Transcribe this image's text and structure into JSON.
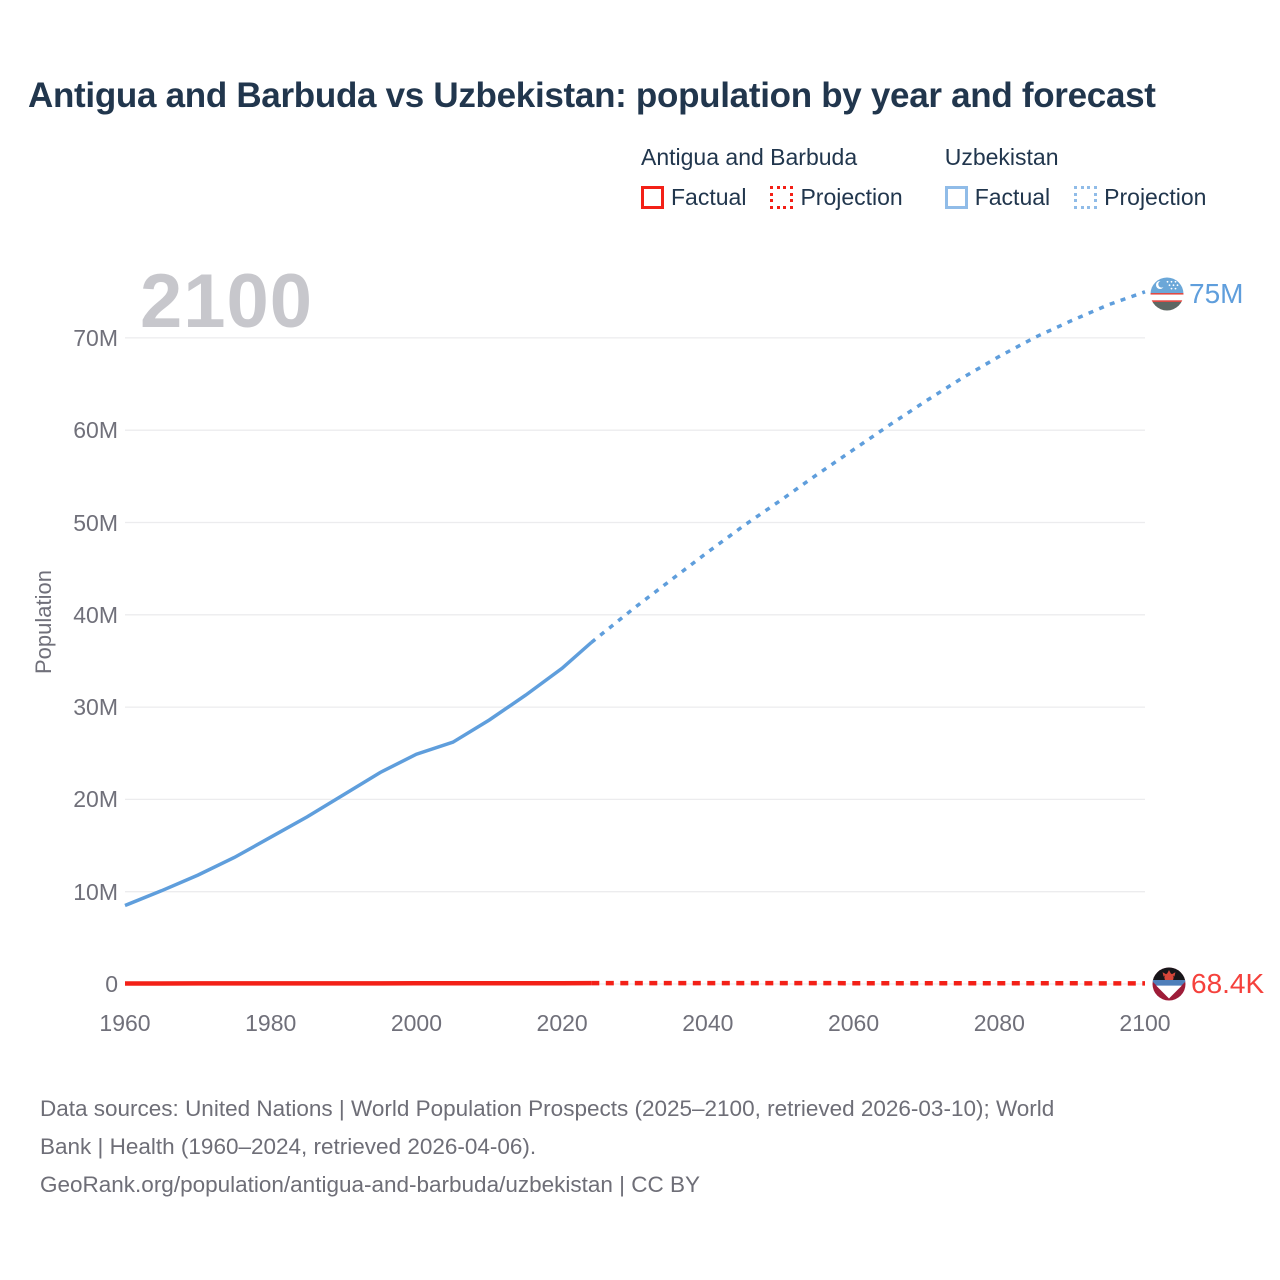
{
  "header": {
    "title": "Antigua and Barbuda vs Uzbekistan: population by year and forecast"
  },
  "watermark_year": "2100",
  "legend": {
    "groups": [
      {
        "name": "Antigua and Barbuda",
        "swatch_color": "#f32017",
        "items": [
          {
            "label": "Factual",
            "line_style": "solid"
          },
          {
            "label": "Projection",
            "line_style": "dashed"
          }
        ]
      },
      {
        "name": "Uzbekistan",
        "swatch_color": "#90bce8",
        "items": [
          {
            "label": "Factual",
            "line_style": "solid"
          },
          {
            "label": "Projection",
            "line_style": "dashed"
          }
        ]
      }
    ]
  },
  "y_axis": {
    "label": "Population"
  },
  "end_markers": {
    "uzbekistan": {
      "label": "75M",
      "icon": "uzbekistan-flag"
    },
    "antigua": {
      "label": "68.4K",
      "icon": "antigua-and-barbuda-flag"
    }
  },
  "footer": {
    "lines": [
      "Data sources: United Nations | World Population Prospects (2025–2100, retrieved 2026-03-10); World",
      "Bank | Health (1960–2024, retrieved 2026-04-06).",
      "GeoRank.org/population/antigua-and-barbuda/uzbekistan | CC BY"
    ]
  },
  "colors": {
    "title_navy": "#21364d",
    "axis_text": "#70707a",
    "gridline": "#ececee",
    "watermark_gray": "#c7c7cc",
    "footer_gray": "#6e6e77",
    "antigua_red": "#f32017",
    "antigua_label_red": "#f5413c",
    "uzbekistan_blue": "#5f9edc",
    "uzbekistan_swatch_blue": "#90bce8"
  },
  "chart_data": {
    "type": "line",
    "title": "Antigua and Barbuda vs Uzbekistan: population by year and forecast",
    "xlabel": "",
    "ylabel": "Population",
    "x_range": [
      1960,
      2100
    ],
    "ylim_millions": [
      0,
      78
    ],
    "x_ticks": [
      1960,
      1980,
      2000,
      2020,
      2040,
      2060,
      2080,
      2100
    ],
    "y_ticks": [
      {
        "value_millions": 0,
        "label": "0"
      },
      {
        "value_millions": 10,
        "label": "10M"
      },
      {
        "value_millions": 20,
        "label": "20M"
      },
      {
        "value_millions": 30,
        "label": "30M"
      },
      {
        "value_millions": 40,
        "label": "40M"
      },
      {
        "value_millions": 50,
        "label": "50M"
      },
      {
        "value_millions": 60,
        "label": "60M"
      },
      {
        "value_millions": 70,
        "label": "70M"
      }
    ],
    "grid": "horizontal",
    "legend_position": "top-right",
    "series": [
      {
        "name": "Uzbekistan — Factual",
        "country": "Uzbekistan",
        "segment": "factual",
        "style": "solid",
        "color": "#5f9edc",
        "stroke_width": 3.5,
        "x": [
          1960,
          1965,
          1970,
          1975,
          1980,
          1985,
          1990,
          1995,
          2000,
          2005,
          2010,
          2015,
          2020,
          2024
        ],
        "values_millions": [
          8.5,
          10.1,
          11.8,
          13.7,
          15.9,
          18.1,
          20.5,
          22.9,
          24.9,
          26.2,
          28.6,
          31.3,
          34.2,
          37.0
        ]
      },
      {
        "name": "Uzbekistan — Projection",
        "country": "Uzbekistan",
        "segment": "projection",
        "style": "dashed",
        "color": "#5f9edc",
        "stroke_width": 3.5,
        "dash": "5 6.5",
        "x": [
          2024,
          2030,
          2035,
          2040,
          2045,
          2050,
          2055,
          2060,
          2065,
          2070,
          2075,
          2080,
          2085,
          2090,
          2095,
          2100
        ],
        "values_millions": [
          37.0,
          40.8,
          43.8,
          46.8,
          49.7,
          52.4,
          55.2,
          57.9,
          60.6,
          63.2,
          65.7,
          68.0,
          70.1,
          71.9,
          73.6,
          75.0
        ]
      },
      {
        "name": "Antigua and Barbuda — Factual",
        "country": "Antigua and Barbuda",
        "segment": "factual",
        "style": "solid",
        "color": "#f32017",
        "stroke_width": 4.5,
        "x": [
          1960,
          1965,
          1970,
          1975,
          1980,
          1985,
          1990,
          1995,
          2000,
          2005,
          2010,
          2015,
          2020,
          2024
        ],
        "values_millions": [
          0.055,
          0.059,
          0.064,
          0.065,
          0.065,
          0.063,
          0.063,
          0.068,
          0.075,
          0.081,
          0.086,
          0.089,
          0.092,
          0.094
        ]
      },
      {
        "name": "Antigua and Barbuda — Projection",
        "country": "Antigua and Barbuda",
        "segment": "projection",
        "style": "dashed",
        "color": "#f32017",
        "stroke_width": 4.5,
        "dash": "8 6.5",
        "x": [
          2024,
          2030,
          2040,
          2050,
          2060,
          2070,
          2080,
          2090,
          2100
        ],
        "values_millions": [
          0.094,
          0.095,
          0.096,
          0.095,
          0.092,
          0.087,
          0.08,
          0.074,
          0.0684
        ]
      }
    ],
    "end_labels": [
      {
        "series": "Uzbekistan",
        "year": 2100,
        "label": "75M"
      },
      {
        "series": "Antigua and Barbuda",
        "year": 2100,
        "label": "68.4K"
      }
    ]
  }
}
